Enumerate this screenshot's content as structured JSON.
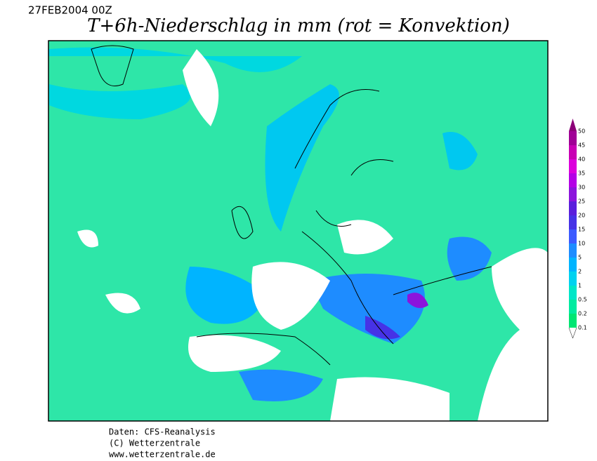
{
  "header": {
    "date": "27FEB2004 00Z",
    "title": "T+6h-Niederschlag in mm (rot = Konvektion)"
  },
  "legend": {
    "levels": [
      0.1,
      0.2,
      0.5,
      1,
      2,
      5,
      10,
      15,
      20,
      25,
      30,
      35,
      40,
      45,
      50
    ],
    "colors": [
      "#00e673",
      "#00eba0",
      "#00e6c8",
      "#00d2f0",
      "#00b4ff",
      "#1e8cff",
      "#3c5aff",
      "#4632e6",
      "#5a1edc",
      "#8c14dc",
      "#b400e6",
      "#dc00dc",
      "#c800b4",
      "#a00096",
      "#8c0078"
    ]
  },
  "footer": {
    "source": "Daten: CFS-Reanalysis",
    "copyright": "(C) Wetterzentrale",
    "url": "www.wetterzentrale.de"
  }
}
